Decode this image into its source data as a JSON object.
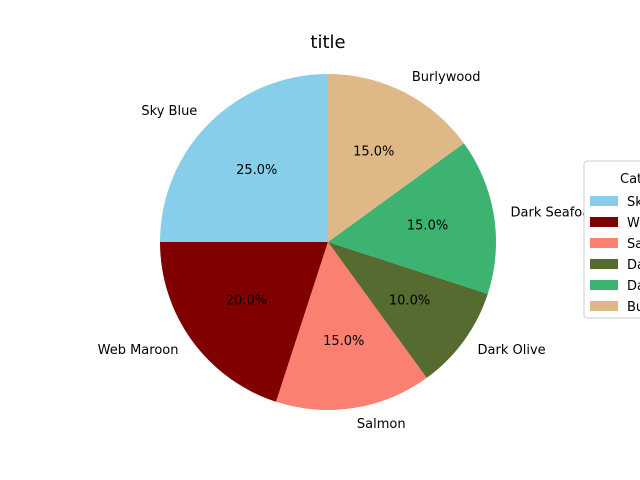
{
  "chart_data": {
    "type": "pie",
    "title": "title",
    "categories": [
      "Sky Blue",
      "Web Maroon",
      "Salmon",
      "Dark Olive",
      "Dark Seafoam",
      "Burlywood"
    ],
    "values": [
      25.0,
      20.0,
      15.0,
      10.0,
      15.0,
      15.0
    ],
    "percent_labels": [
      "25.0%",
      "20.0%",
      "15.0%",
      "10.0%",
      "15.0%",
      "15.0%"
    ],
    "colors": [
      "#87ceeb",
      "#800000",
      "#fa8072",
      "#556b2f",
      "#3cb371",
      "#deb887"
    ],
    "start_angle_deg": 90,
    "direction": "counterclockwise",
    "legend": {
      "title": "Categories",
      "placement": "right",
      "entries": [
        "Sky Blue",
        "Web Maroon",
        "Salmon",
        "Dark Olive",
        "Dark Seafoam",
        "Burlywood"
      ]
    }
  }
}
